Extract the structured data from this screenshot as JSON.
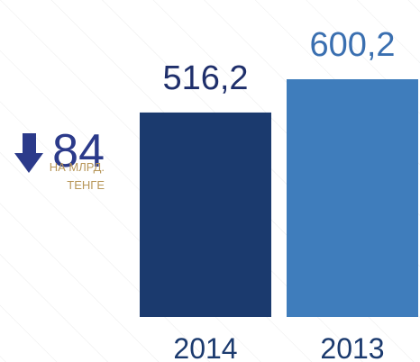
{
  "chart_data": {
    "type": "bar",
    "categories": [
      "2014",
      "2013"
    ],
    "values": [
      516.2,
      600.2
    ],
    "value_labels": [
      "516,2",
      "600,2"
    ],
    "colors": [
      "#1b3a6e",
      "#3f7dbc"
    ],
    "annotation": {
      "value": "84",
      "unit": [
        "НА МЛРД.",
        "ТЕНГЕ"
      ]
    }
  }
}
